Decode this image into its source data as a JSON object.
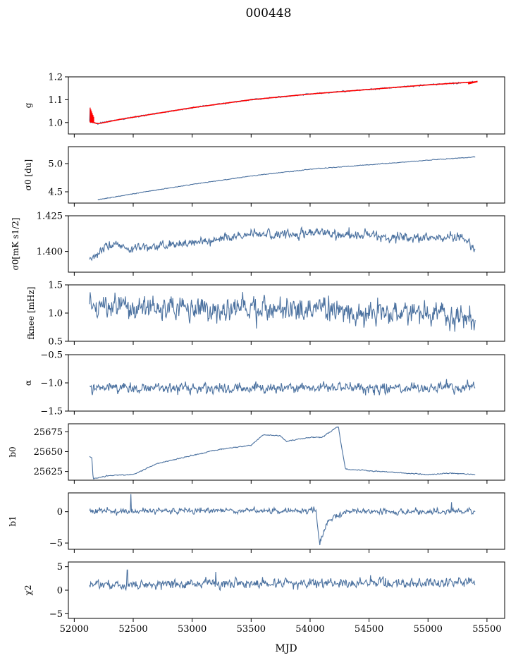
{
  "figure": {
    "title": "000448",
    "xlabel": "MJD"
  },
  "colors": {
    "series": "#4c72a0",
    "fit": "#ff0000",
    "axis": "#000000"
  },
  "chart_data": [
    {
      "type": "line",
      "ylabel": "g",
      "xlim": [
        51950,
        55650
      ],
      "ylim": [
        0.95,
        1.2
      ],
      "yticks": [
        1.0,
        1.1,
        1.2
      ],
      "ytick_labels": [
        "1.0",
        "1.1",
        "1.2"
      ],
      "x_range": [
        52130,
        55400
      ],
      "trend": [
        [
          52130,
          1.005
        ],
        [
          52200,
          0.995
        ],
        [
          52400,
          1.015
        ],
        [
          52700,
          1.04
        ],
        [
          53000,
          1.065
        ],
        [
          53500,
          1.1
        ],
        [
          54000,
          1.125
        ],
        [
          54500,
          1.145
        ],
        [
          55000,
          1.165
        ],
        [
          55400,
          1.178
        ]
      ],
      "noise": 0.002,
      "spikes": [
        [
          52135,
          1.065
        ]
      ],
      "fit_color": "#ff0000"
    },
    {
      "type": "line",
      "ylabel": "σ0 [du]",
      "xlim": [
        51950,
        55650
      ],
      "ylim": [
        4.3,
        5.3
      ],
      "yticks": [
        4.5,
        5.0
      ],
      "ytick_labels": [
        "4.5",
        "5.0"
      ],
      "x_range": [
        52200,
        55400
      ],
      "trend": [
        [
          52200,
          4.36
        ],
        [
          52600,
          4.5
        ],
        [
          53000,
          4.63
        ],
        [
          53500,
          4.78
        ],
        [
          54000,
          4.9
        ],
        [
          54500,
          4.98
        ],
        [
          55000,
          5.06
        ],
        [
          55400,
          5.12
        ]
      ],
      "noise": 0.004
    },
    {
      "type": "line",
      "ylabel": "σ0[mK s1/2]",
      "xlim": [
        51950,
        55650
      ],
      "ylim": [
        1.3855,
        1.425
      ],
      "yticks": [
        1.4,
        1.425
      ],
      "ytick_labels": [
        "1.400",
        "1.425"
      ],
      "x_range": [
        52130,
        55400
      ],
      "trend": [
        [
          52130,
          1.394
        ],
        [
          52300,
          1.405
        ],
        [
          52500,
          1.402
        ],
        [
          53000,
          1.406
        ],
        [
          53500,
          1.412
        ],
        [
          54000,
          1.413
        ],
        [
          54500,
          1.411
        ],
        [
          55000,
          1.409
        ],
        [
          55300,
          1.41
        ],
        [
          55400,
          1.401
        ]
      ],
      "noise": 0.0022
    },
    {
      "type": "line",
      "ylabel": "fknee [mHz]",
      "xlim": [
        51950,
        55650
      ],
      "ylim": [
        0.5,
        1.5
      ],
      "yticks": [
        0.5,
        1.0,
        1.5
      ],
      "ytick_labels": [
        "0.5",
        "1.0",
        "1.5"
      ],
      "x_range": [
        52130,
        55400
      ],
      "trend": [
        [
          52130,
          1.15
        ],
        [
          53000,
          1.05
        ],
        [
          54000,
          1.05
        ],
        [
          55400,
          0.95
        ]
      ],
      "noise": 0.15
    },
    {
      "type": "line",
      "ylabel": "α",
      "xlim": [
        51950,
        55650
      ],
      "ylim": [
        -1.5,
        -0.5
      ],
      "yticks": [
        -1.5,
        -1.0,
        -0.5
      ],
      "ytick_labels": [
        "−1.5",
        "−1.0",
        "−0.5"
      ],
      "x_range": [
        52130,
        55400
      ],
      "trend": [
        [
          52130,
          -1.1
        ],
        [
          55400,
          -1.08
        ]
      ],
      "noise": 0.06
    },
    {
      "type": "line",
      "ylabel": "b0",
      "xlim": [
        51950,
        55650
      ],
      "ylim": [
        25614,
        25685
      ],
      "yticks": [
        25625,
        25650,
        25675
      ],
      "ytick_labels": [
        "25625",
        "25650",
        "25675"
      ],
      "x_range": [
        52130,
        55400
      ],
      "trend": [
        [
          52130,
          25644
        ],
        [
          52150,
          25642
        ],
        [
          52160,
          25616
        ],
        [
          52300,
          25620
        ],
        [
          52500,
          25621
        ],
        [
          52700,
          25635
        ],
        [
          53000,
          25645
        ],
        [
          53200,
          25652
        ],
        [
          53500,
          25658
        ],
        [
          53600,
          25671
        ],
        [
          53750,
          25670
        ],
        [
          53800,
          25663
        ],
        [
          54000,
          25668
        ],
        [
          54100,
          25668
        ],
        [
          54240,
          25682
        ],
        [
          54260,
          25662
        ],
        [
          54300,
          25628
        ],
        [
          54500,
          25626
        ],
        [
          55000,
          25621
        ],
        [
          55200,
          25623
        ],
        [
          55400,
          25621
        ]
      ],
      "noise": 0.4
    },
    {
      "type": "line",
      "ylabel": "b1",
      "xlim": [
        51950,
        55650
      ],
      "ylim": [
        -6,
        3
      ],
      "yticks": [
        -5,
        0
      ],
      "ytick_labels": [
        "−5",
        "0"
      ],
      "x_range": [
        52130,
        55400
      ],
      "trend": [
        [
          52130,
          0.1
        ],
        [
          54050,
          0.2
        ],
        [
          54080,
          -5.2
        ],
        [
          54150,
          -1.5
        ],
        [
          54300,
          0
        ],
        [
          55400,
          0
        ]
      ],
      "noise": 0.3,
      "spikes": [
        [
          52480,
          2.8
        ],
        [
          55200,
          1.5
        ]
      ]
    },
    {
      "type": "line",
      "ylabel": "χ2",
      "xlim": [
        51950,
        55650
      ],
      "ylim": [
        -6,
        6
      ],
      "yticks": [
        -5,
        0,
        5
      ],
      "ytick_labels": [
        "−5",
        "0",
        "5"
      ],
      "x_range": [
        52130,
        55400
      ],
      "trend": [
        [
          52130,
          1.2
        ],
        [
          55400,
          1.8
        ]
      ],
      "noise": 0.7,
      "spikes": [
        [
          52450,
          4.3
        ],
        [
          53200,
          3.9
        ]
      ]
    }
  ],
  "xaxis": {
    "ticks": [
      52000,
      52500,
      53000,
      53500,
      54000,
      54500,
      55000,
      55500
    ],
    "tick_labels": [
      "52000",
      "52500",
      "53000",
      "53500",
      "54000",
      "54500",
      "55000",
      "55500"
    ]
  }
}
